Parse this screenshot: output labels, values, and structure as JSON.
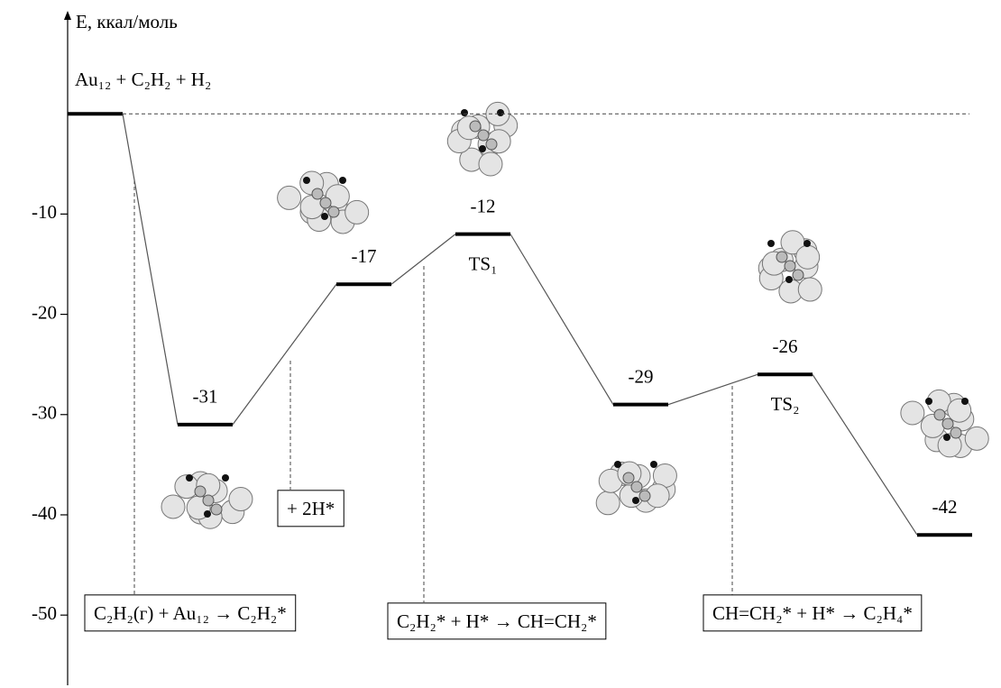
{
  "chart_data": {
    "type": "energy-profile",
    "y_label": "E, ккал/моль",
    "categories": [
      "Au₁₂ + C₂H₂ + H₂",
      null,
      null,
      "TS₁",
      null,
      "TS₂",
      null
    ],
    "values": [
      0,
      -31,
      -17,
      -12,
      -29,
      -26,
      -42
    ],
    "value_labels": [
      null,
      "-31",
      "-17",
      "-12",
      "-29",
      "-26",
      "-42"
    ],
    "ylim": [
      -57,
      10
    ],
    "yticks": [
      -10,
      -20,
      -30,
      -40,
      -50
    ],
    "reference_line": true,
    "annotations": [
      "C₂H₂(г) + Au₁₂ → C₂H₂*",
      "+ 2H*",
      "C₂H₂* + H* → CH=CH₂*",
      "CH=CH₂* + H* → C₂H₄*"
    ],
    "color": "#000000"
  }
}
